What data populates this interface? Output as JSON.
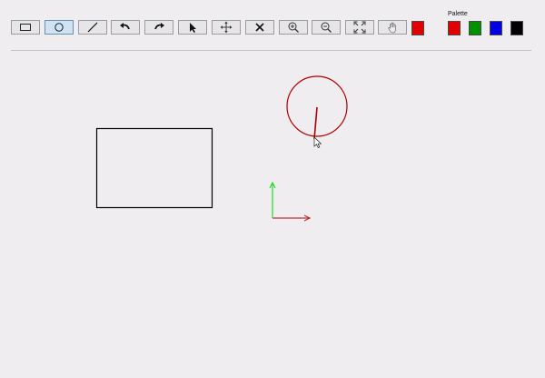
{
  "toolbar": {
    "tools": [
      {
        "id": "rectangle",
        "icon": "rectangle-icon",
        "active": false
      },
      {
        "id": "ellipse",
        "icon": "circle-icon",
        "active": true
      },
      {
        "id": "line",
        "icon": "line-icon",
        "active": false
      },
      {
        "id": "undo",
        "icon": "undo-icon",
        "active": false
      },
      {
        "id": "redo",
        "icon": "redo-icon",
        "active": false
      },
      {
        "id": "select",
        "icon": "pointer-icon",
        "active": false
      },
      {
        "id": "move",
        "icon": "move-arrows-icon",
        "active": false
      },
      {
        "id": "delete",
        "icon": "close-icon",
        "active": false
      },
      {
        "id": "zoom-in",
        "icon": "zoom-in-icon",
        "active": false
      },
      {
        "id": "zoom-out",
        "icon": "zoom-out-icon",
        "active": false
      },
      {
        "id": "fit",
        "icon": "fit-screen-icon",
        "active": false
      },
      {
        "id": "pan",
        "icon": "hand-icon",
        "active": false
      }
    ],
    "current_color": "#e00000"
  },
  "palette": {
    "label": "Palette",
    "colors": [
      "#e00000",
      "#009000",
      "#0000e0",
      "#000000"
    ]
  },
  "canvas": {
    "stroke_colors": {
      "rectangle": "#000000",
      "circle": "#b00000",
      "axis_x": "#c0303a",
      "axis_y": "#22dd22"
    }
  }
}
